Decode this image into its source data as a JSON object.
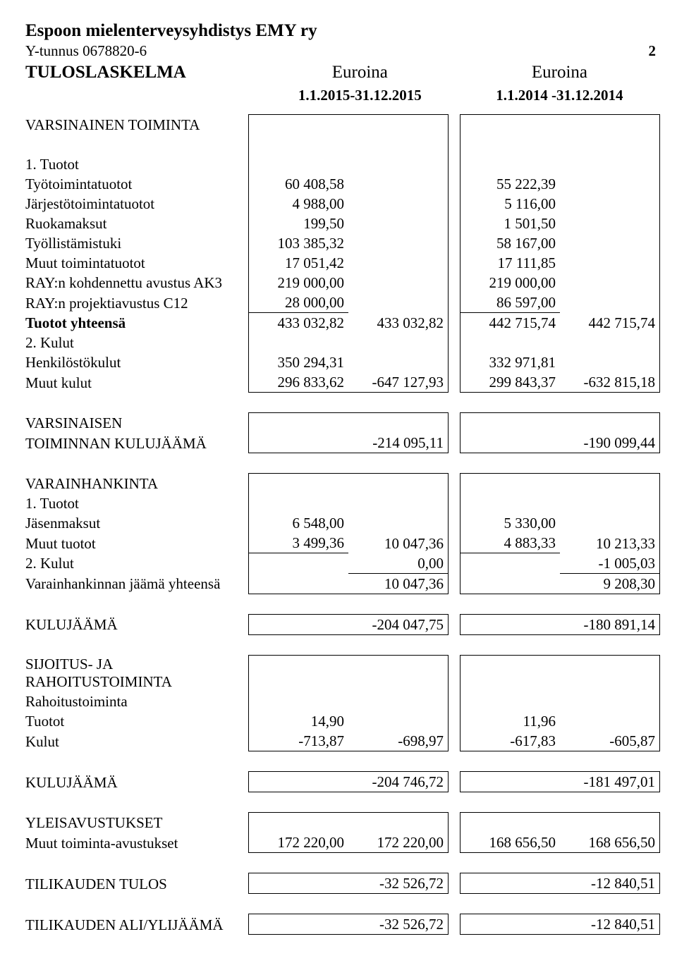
{
  "header": {
    "org_name": "Espoon mielenterveysyhdistys EMY ry",
    "y_tunnus_label": "Y-tunnus 0678820-6",
    "page_number": "2",
    "doc_title": "TULOSLASKELMA",
    "unit_col_a": "Euroina",
    "unit_col_b": "Euroina",
    "period_a": "1.1.2015-31.12.2015",
    "period_b": "1.1.2014 -31.12.2014"
  },
  "rows": {
    "varsinainen_title": "VARSINAINEN TOIMINTA",
    "tuotot_title": "1. Tuotot",
    "tyotoiminta": {
      "label": "Työtoimintatuotot",
      "a1": "60 408,58",
      "b1": "55 222,39"
    },
    "jarjesto": {
      "label": "Järjestötoimintatuotot",
      "a1": "4 988,00",
      "b1": "5 116,00"
    },
    "ruokamaksut": {
      "label": "Ruokamaksut",
      "a1": "199,50",
      "b1": "1 501,50"
    },
    "tyollistamistuki": {
      "label": "Työllistämistuki",
      "a1": "103 385,32",
      "b1": "58 167,00"
    },
    "muut_toiminta": {
      "label": "Muut toimintatuotot",
      "a1": "17 051,42",
      "b1": "17 111,85"
    },
    "ray_ak3": {
      "label": "RAY:n kohdennettu avustus AK3",
      "a1": "219 000,00",
      "b1": "219 000,00"
    },
    "ray_c12": {
      "label": "RAY:n projektiavustus C12",
      "a1": "28 000,00",
      "b1": "86 597,00"
    },
    "tuotot_yht": {
      "label": "Tuotot yhteensä",
      "a1": "433 032,82",
      "a2": "433 032,82",
      "b1": "442 715,74",
      "b2": "442 715,74"
    },
    "kulut_title": "2. Kulut",
    "henkilosto": {
      "label": "Henkilöstökulut",
      "a1": "350 294,31",
      "b1": "332 971,81"
    },
    "muut_kulut": {
      "label": "Muut kulut",
      "a1": "296 833,62",
      "a2": "-647 127,93",
      "b1": "299 843,37",
      "b2": "-632 815,18"
    },
    "vars_kulujaama_l1": "VARSINAISEN",
    "vars_kulujaama_l2": "TOIMINNAN KULUJÄÄMÄ",
    "vars_kulujaama": {
      "a2": "-214 095,11",
      "b2": "-190 099,44"
    },
    "varainhankinta_title": "VARAINHANKINTA",
    "vh_tuotot_title": "1. Tuotot",
    "jasenmaksut": {
      "label": "Jäsenmaksut",
      "a1": "6 548,00",
      "b1": "5 330,00"
    },
    "muut_tuotot_vh": {
      "label": "Muut tuotot",
      "a1": "3 499,36",
      "a2": "10 047,36",
      "b1": "4 883,33",
      "b2": "10 213,33"
    },
    "vh_kulut": {
      "label": "2. Kulut",
      "a2": "0,00",
      "b2": "-1 005,03"
    },
    "vh_jaama": {
      "label": "Varainhankinnan jäämä yhteensä",
      "a2": "10 047,36",
      "b2": "9 208,30"
    },
    "kulujaama1": {
      "label": "KULUJÄÄMÄ",
      "a2": "-204 047,75",
      "b2": "-180 891,14"
    },
    "sijoitus_title": "SIJOITUS- JA RAHOITUSTOIMINTA",
    "rahoitus_sub": "Rahoitustoiminta",
    "rah_tuotot": {
      "label": "Tuotot",
      "a1": "14,90",
      "b1": "11,96"
    },
    "rah_kulut": {
      "label": "Kulut",
      "a1": "-713,87",
      "a2": "-698,97",
      "b1": "-617,83",
      "b2": "-605,87"
    },
    "kulujaama2": {
      "label": "KULUJÄÄMÄ",
      "a2": "-204 746,72",
      "b2": "-181 497,01"
    },
    "yleis_title": "YLEISAVUSTUKSET",
    "muut_avustus": {
      "label": "Muut toiminta-avustukset",
      "a1": "172 220,00",
      "a2": "172 220,00",
      "b1": "168 656,50",
      "b2": "168 656,50"
    },
    "tilikauden_tulos": {
      "label": "TILIKAUDEN TULOS",
      "a2": "-32 526,72",
      "b2": "-12 840,51"
    },
    "tilikauden_yli": {
      "label": "TILIKAUDEN ALI/YLIJÄÄMÄ",
      "a2": "-32 526,72",
      "b2": "-12 840,51"
    }
  }
}
